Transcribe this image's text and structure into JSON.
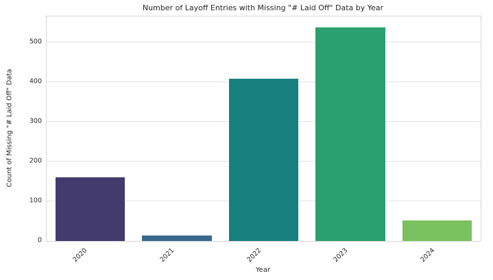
{
  "chart_data": {
    "type": "bar",
    "title": "Number of Layoff Entries with Missing \"# Laid Off\" Data by Year",
    "xlabel": "Year",
    "ylabel": "Count of Missing \"# Laid Off\" Data",
    "categories": [
      "2020",
      "2021",
      "2022",
      "2023",
      "2024"
    ],
    "values": [
      160,
      13,
      408,
      538,
      52
    ],
    "bar_colors": [
      "#433a6e",
      "#38678f",
      "#17807e",
      "#2aa06e",
      "#7ac25e"
    ],
    "yticks": [
      0,
      100,
      200,
      300,
      400,
      500
    ],
    "ylim": [
      0,
      565
    ],
    "grid": "horizontal",
    "legend": "none",
    "x_tick_rotation": 45,
    "background_color": "#ffffff",
    "text_color": "#262626"
  }
}
